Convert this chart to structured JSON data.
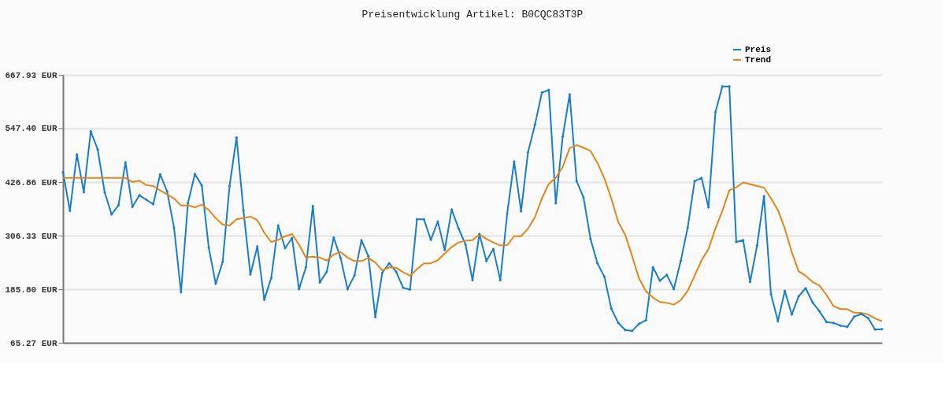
{
  "chart_data": {
    "type": "line",
    "title": "Preisentwicklung Artikel: B0CQC83T3P",
    "categories": [
      null,
      null,
      null,
      null,
      null,
      null,
      null,
      null,
      null,
      null,
      null,
      null,
      null,
      null,
      null,
      null,
      null,
      null,
      null,
      null,
      null,
      null,
      null,
      null,
      null,
      null,
      null,
      null,
      null,
      null,
      null,
      null,
      null,
      null,
      null,
      null,
      null,
      null,
      null,
      null,
      null,
      null,
      null,
      null,
      null,
      null,
      null,
      null,
      null,
      null,
      null,
      null,
      null,
      null,
      null,
      null,
      null,
      null,
      null,
      null,
      null,
      null,
      null,
      null,
      null,
      null,
      null,
      null,
      null,
      null,
      null,
      null,
      null,
      null,
      null,
      null,
      null,
      null,
      null,
      null,
      null,
      null,
      null,
      null,
      null,
      null,
      null,
      null,
      null,
      null,
      null,
      null,
      null,
      null,
      null,
      null,
      null,
      null,
      null,
      null,
      null,
      null,
      null,
      null,
      null,
      null,
      null,
      null,
      null,
      null,
      null,
      null,
      null,
      null,
      null,
      null,
      null,
      null,
      null
    ],
    "series": [
      {
        "name": "Preis",
        "color": "#1a7dc8",
        "marker": "diamond",
        "values": [
          449,
          362,
          489,
          404,
          541,
          500,
          404,
          354,
          375,
          471,
          371,
          397,
          387,
          377,
          444,
          406,
          324,
          179,
          379,
          445,
          419,
          279,
          198,
          247,
          418,
          527,
          363,
          219,
          282,
          162,
          211,
          329,
          278,
          301,
          186,
          235,
          373,
          201,
          225,
          302,
          256,
          186,
          217,
          296,
          260,
          123,
          223,
          244,
          225,
          189,
          185,
          343,
          343,
          297,
          338,
          274,
          365,
          322,
          286,
          206,
          310,
          249,
          276,
          206,
          356,
          473,
          361,
          494,
          556,
          628,
          634,
          379,
          529,
          624,
          429,
          392,
          299,
          244,
          214,
          142,
          110,
          94,
          92,
          108,
          116,
          235,
          205,
          218,
          186,
          249,
          324,
          429,
          436,
          370,
          584,
          642,
          642,
          292,
          296,
          202,
          284,
          395,
          175,
          114,
          182,
          129,
          170,
          188,
          156,
          136,
          112,
          110,
          104,
          101,
          124,
          130,
          121,
          95,
          96
        ]
      },
      {
        "name": "Trend",
        "color": "#e0861a",
        "marker": "none",
        "values": [
          436,
          436,
          436,
          436,
          436,
          436,
          436,
          436,
          436,
          436,
          427,
          430,
          420,
          418,
          408,
          399,
          390,
          374,
          374,
          370,
          376,
          364,
          346,
          331,
          329,
          343,
          346,
          349,
          341,
          313,
          292,
          297,
          305,
          310,
          286,
          257,
          259,
          257,
          250,
          264,
          269,
          257,
          249,
          249,
          256,
          246,
          228,
          235,
          234,
          224,
          216,
          231,
          244,
          244,
          251,
          266,
          281,
          291,
          295,
          296,
          309,
          299,
          291,
          284,
          285,
          305,
          305,
          322,
          348,
          390,
          423,
          436,
          461,
          503,
          510,
          504,
          497,
          470,
          435,
          390,
          337,
          308,
          260,
          210,
          181,
          167,
          157,
          155,
          151,
          161,
          182,
          216,
          251,
          276,
          322,
          362,
          408,
          415,
          426,
          422,
          418,
          414,
          390,
          364,
          322,
          269,
          226,
          216,
          202,
          194,
          173,
          148,
          141,
          141,
          133,
          132,
          129,
          120,
          114
        ]
      }
    ],
    "ylim": [
      65.27,
      667.93
    ],
    "yticks": [
      {
        "value": 65.27,
        "label": "65.27 EUR"
      },
      {
        "value": 185.8,
        "label": "185.80 EUR"
      },
      {
        "value": 306.33,
        "label": "306.33 EUR"
      },
      {
        "value": 426.86,
        "label": "426.86 EUR"
      },
      {
        "value": 547.4,
        "label": "547.40 EUR"
      },
      {
        "value": 667.93,
        "label": "667.93 EUR"
      }
    ],
    "grid": "y",
    "legend": "top right",
    "tick_labels": "y",
    "line_style": "solid"
  }
}
